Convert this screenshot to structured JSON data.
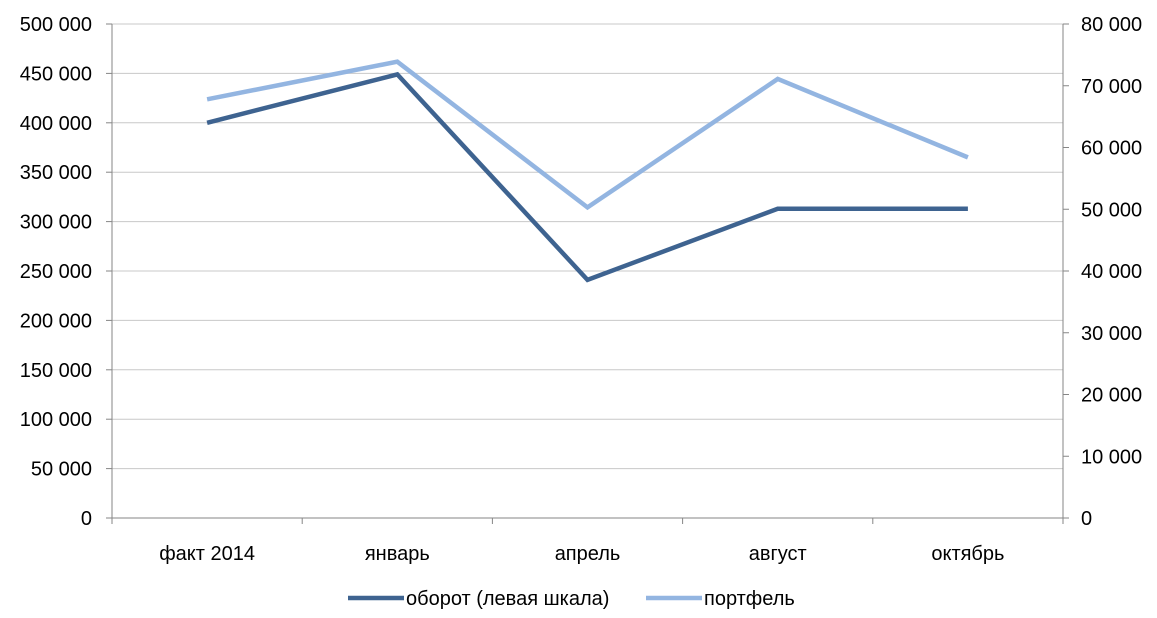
{
  "chart_data": {
    "type": "line",
    "categories": [
      "факт 2014",
      "январь",
      "апрель",
      "август",
      "октябрь"
    ],
    "y_left": {
      "min": 0,
      "max": 500000,
      "ticks": [
        0,
        50000,
        100000,
        150000,
        200000,
        250000,
        300000,
        350000,
        400000,
        450000,
        500000
      ],
      "tick_labels": [
        "0",
        "50 000",
        "100 000",
        "150 000",
        "200 000",
        "250 000",
        "300 000",
        "350 000",
        "400 000",
        "450 000",
        "500 000"
      ]
    },
    "y_right": {
      "min": 0,
      "max": 80000,
      "ticks": [
        0,
        10000,
        20000,
        30000,
        40000,
        50000,
        60000,
        70000,
        80000
      ],
      "tick_labels": [
        "0",
        "10 000",
        "20 000",
        "30 000",
        "40 000",
        "50 000",
        "60 000",
        "70 000",
        "80 000"
      ]
    },
    "series": [
      {
        "name": "оборот (левая шкала)",
        "axis": "left",
        "color": "#3e6390",
        "values": [
          400000,
          449000,
          241000,
          313000,
          313000
        ]
      },
      {
        "name": "портфель",
        "axis": "right",
        "color": "#93b5e1",
        "values": [
          67800,
          73900,
          50300,
          71100,
          58400
        ]
      }
    ],
    "grid": true,
    "legend_position": "bottom"
  }
}
